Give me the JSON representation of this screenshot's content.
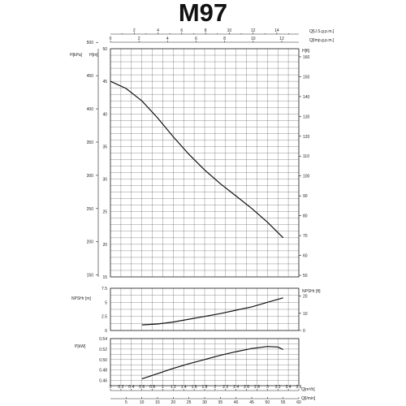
{
  "title": "M97",
  "chart_data": {
    "type": "line",
    "title": "M97",
    "top_axes": [
      {
        "label": "Q[U.S.g.p.m.]",
        "ticks": [
          2,
          4,
          6,
          8,
          10,
          12,
          14
        ]
      },
      {
        "label": "Q[Imp.g.p.m.]",
        "ticks": [
          0,
          2,
          4,
          6,
          8,
          10,
          12
        ]
      }
    ],
    "bottom_axes": [
      {
        "label": "Q[m³/h]",
        "ticks": [
          0,
          0.2,
          0.4,
          0.6,
          0.8,
          1.0,
          1.2,
          1.4,
          1.6,
          1.8,
          2.0,
          2.2,
          2.4,
          2.6,
          2.8,
          3.0,
          3.2,
          3.4,
          3.6
        ],
        "tick_labels": [
          "0",
          "0.2",
          "0.4",
          "0.6",
          "0.8",
          "1",
          "1.2",
          "1.4",
          "1.6",
          "1.8",
          "2",
          "2.2",
          "2.4",
          "2.6",
          "2.8",
          "3",
          "3.2",
          "3.4",
          "3.6"
        ]
      },
      {
        "label": "Q[l/min]",
        "ticks": [
          5,
          10,
          15,
          20,
          25,
          30,
          35,
          40,
          45,
          50,
          55,
          60
        ]
      }
    ],
    "panels": [
      {
        "name": "head",
        "left_axes": [
          {
            "label": "H[kPa]",
            "ticks": [
              150,
              200,
              250,
              300,
              350,
              400,
              450,
              500
            ]
          },
          {
            "label": "H[m]",
            "ticks": [
              15,
              20,
              25,
              30,
              35,
              40,
              45,
              50
            ],
            "ylim": [
              15,
              50
            ]
          }
        ],
        "right_axis": {
          "label": "H[ft]",
          "ticks": [
            50,
            60,
            70,
            80,
            90,
            100,
            110,
            120,
            130,
            140,
            150,
            160
          ]
        },
        "x": [
          0,
          0.3,
          0.6,
          0.9,
          1.2,
          1.5,
          1.8,
          2.1,
          2.4,
          2.7,
          3.0,
          3.3
        ],
        "y": [
          45.0,
          43.9,
          42.0,
          39.4,
          36.5,
          33.8,
          31.4,
          29.3,
          27.4,
          25.5,
          23.4,
          21.0
        ]
      },
      {
        "name": "npsh",
        "left_axis": {
          "label": "NPSHr [m]",
          "ticks": [
            0,
            2.5,
            5,
            7.5
          ],
          "ylim": [
            0,
            7.5
          ]
        },
        "right_axis": {
          "label": "NPSHr [ft]",
          "ticks": [
            0,
            10,
            20
          ]
        },
        "x": [
          0.6,
          0.9,
          1.2,
          1.5,
          1.8,
          2.1,
          2.4,
          2.7,
          3.0,
          3.3
        ],
        "y": [
          1.0,
          1.15,
          1.5,
          2.0,
          2.5,
          3.0,
          3.6,
          4.2,
          5.0,
          5.8
        ]
      },
      {
        "name": "power",
        "left_axis": {
          "label": "P[kW]",
          "ticks": [
            0.46,
            0.48,
            0.5,
            0.52,
            0.54
          ],
          "ylim": [
            0.45,
            0.54
          ]
        },
        "x": [
          0.6,
          0.9,
          1.2,
          1.5,
          1.8,
          2.1,
          2.4,
          2.7,
          3.0,
          3.2,
          3.3
        ],
        "y": [
          0.463,
          0.473,
          0.483,
          0.492,
          0.5,
          0.508,
          0.515,
          0.521,
          0.525,
          0.524,
          0.519
        ]
      }
    ],
    "grid": true
  }
}
